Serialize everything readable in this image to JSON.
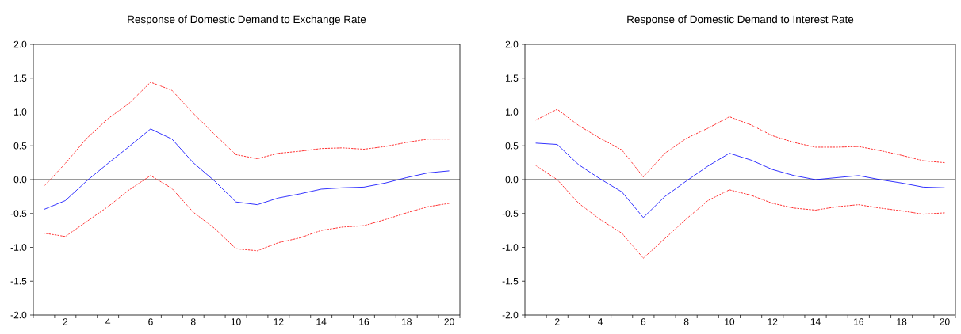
{
  "chart_data": [
    {
      "type": "line",
      "title": "Response of Domestic Demand to Exchange Rate",
      "x": [
        1,
        2,
        3,
        4,
        5,
        6,
        7,
        8,
        9,
        10,
        11,
        12,
        13,
        14,
        15,
        16,
        17,
        18,
        19,
        20
      ],
      "series": [
        {
          "color": "#0000ff",
          "line_style": "solid",
          "values": [
            -0.44,
            -0.31,
            -0.02,
            0.24,
            0.49,
            0.75,
            0.6,
            0.25,
            -0.02,
            -0.33,
            -0.37,
            -0.27,
            -0.21,
            -0.14,
            -0.12,
            -0.11,
            -0.05,
            0.03,
            0.1,
            0.13
          ]
        },
        {
          "color": "#ff0000",
          "line_style": "dashed",
          "values": [
            -0.1,
            0.24,
            0.61,
            0.9,
            1.13,
            1.44,
            1.32,
            0.98,
            0.67,
            0.37,
            0.31,
            0.39,
            0.42,
            0.46,
            0.47,
            0.45,
            0.49,
            0.55,
            0.6,
            0.6
          ]
        },
        {
          "color": "#ff0000",
          "line_style": "dashed",
          "values": [
            -0.79,
            -0.84,
            -0.62,
            -0.4,
            -0.15,
            0.06,
            -0.13,
            -0.48,
            -0.72,
            -1.02,
            -1.05,
            -0.93,
            -0.86,
            -0.75,
            -0.7,
            -0.68,
            -0.59,
            -0.49,
            -0.4,
            -0.35
          ]
        }
      ],
      "xlim": [
        0.5,
        20.5
      ],
      "xticks": [
        {
          "value": 0.5,
          "label": null
        },
        {
          "value": 1.5,
          "label": null
        },
        {
          "value": 2,
          "label": "2"
        },
        {
          "value": 2.5,
          "label": null
        },
        {
          "value": 3.5,
          "label": null
        },
        {
          "value": 4,
          "label": "4"
        },
        {
          "value": 4.5,
          "label": null
        },
        {
          "value": 5.5,
          "label": null
        },
        {
          "value": 6,
          "label": "6"
        },
        {
          "value": 6.5,
          "label": null
        },
        {
          "value": 7.5,
          "label": null
        },
        {
          "value": 8,
          "label": "8"
        },
        {
          "value": 8.5,
          "label": null
        },
        {
          "value": 9.5,
          "label": null
        },
        {
          "value": 10,
          "label": "10"
        },
        {
          "value": 10.5,
          "label": null
        },
        {
          "value": 11.5,
          "label": null
        },
        {
          "value": 12,
          "label": "12"
        },
        {
          "value": 12.5,
          "label": null
        },
        {
          "value": 13.5,
          "label": null
        },
        {
          "value": 14,
          "label": "14"
        },
        {
          "value": 14.5,
          "label": null
        },
        {
          "value": 15.5,
          "label": null
        },
        {
          "value": 16,
          "label": "16"
        },
        {
          "value": 16.5,
          "label": null
        },
        {
          "value": 17.5,
          "label": null
        },
        {
          "value": 18,
          "label": "18"
        },
        {
          "value": 18.5,
          "label": null
        },
        {
          "value": 19.5,
          "label": null
        },
        {
          "value": 20,
          "label": "20"
        },
        {
          "value": 20.5,
          "label": null
        }
      ],
      "ylim": [
        -2,
        2
      ],
      "yticks": [
        {
          "value": -2,
          "label": "-2.0"
        },
        {
          "value": -1.5,
          "label": "-1.5"
        },
        {
          "value": -1,
          "label": "-1.0"
        },
        {
          "value": -0.5,
          "label": "-0.5"
        },
        {
          "value": 0,
          "label": "0.0"
        },
        {
          "value": 0.5,
          "label": "0.5"
        },
        {
          "value": 1,
          "label": "1.0"
        },
        {
          "value": 1.5,
          "label": "1.5"
        },
        {
          "value": 2,
          "label": "2.0"
        }
      ],
      "ref_lines": [
        {
          "axis": "y",
          "value": 0,
          "color": "#000000"
        }
      ]
    },
    {
      "type": "line",
      "title": "Response of Domestic Demand to Interest Rate",
      "x": [
        1,
        2,
        3,
        4,
        5,
        6,
        7,
        8,
        9,
        10,
        11,
        12,
        13,
        14,
        15,
        16,
        17,
        18,
        19,
        20
      ],
      "series": [
        {
          "color": "#0000ff",
          "line_style": "solid",
          "values": [
            0.54,
            0.52,
            0.22,
            0.01,
            -0.18,
            -0.56,
            -0.25,
            -0.02,
            0.2,
            0.39,
            0.29,
            0.15,
            0.06,
            0.0,
            0.03,
            0.06,
            0.0,
            -0.05,
            -0.11,
            -0.12
          ]
        },
        {
          "color": "#ff0000",
          "line_style": "dashed",
          "values": [
            0.88,
            1.04,
            0.8,
            0.61,
            0.44,
            0.04,
            0.39,
            0.61,
            0.76,
            0.93,
            0.81,
            0.65,
            0.55,
            0.48,
            0.48,
            0.49,
            0.43,
            0.36,
            0.28,
            0.25
          ]
        },
        {
          "color": "#ff0000",
          "line_style": "dashed",
          "values": [
            0.21,
            0.0,
            -0.35,
            -0.59,
            -0.79,
            -1.16,
            -0.87,
            -0.58,
            -0.31,
            -0.15,
            -0.23,
            -0.35,
            -0.42,
            -0.45,
            -0.4,
            -0.37,
            -0.42,
            -0.46,
            -0.51,
            -0.49
          ]
        }
      ],
      "xlim": [
        0.5,
        20.5
      ],
      "xticks": [
        {
          "value": 0.5,
          "label": null
        },
        {
          "value": 1.5,
          "label": null
        },
        {
          "value": 2,
          "label": "2"
        },
        {
          "value": 2.5,
          "label": null
        },
        {
          "value": 3.5,
          "label": null
        },
        {
          "value": 4,
          "label": "4"
        },
        {
          "value": 4.5,
          "label": null
        },
        {
          "value": 5.5,
          "label": null
        },
        {
          "value": 6,
          "label": "6"
        },
        {
          "value": 6.5,
          "label": null
        },
        {
          "value": 7.5,
          "label": null
        },
        {
          "value": 8,
          "label": "8"
        },
        {
          "value": 8.5,
          "label": null
        },
        {
          "value": 9.5,
          "label": null
        },
        {
          "value": 10,
          "label": "10"
        },
        {
          "value": 10.5,
          "label": null
        },
        {
          "value": 11.5,
          "label": null
        },
        {
          "value": 12,
          "label": "12"
        },
        {
          "value": 12.5,
          "label": null
        },
        {
          "value": 13.5,
          "label": null
        },
        {
          "value": 14,
          "label": "14"
        },
        {
          "value": 14.5,
          "label": null
        },
        {
          "value": 15.5,
          "label": null
        },
        {
          "value": 16,
          "label": "16"
        },
        {
          "value": 16.5,
          "label": null
        },
        {
          "value": 17.5,
          "label": null
        },
        {
          "value": 18,
          "label": "18"
        },
        {
          "value": 18.5,
          "label": null
        },
        {
          "value": 19.5,
          "label": null
        },
        {
          "value": 20,
          "label": "20"
        },
        {
          "value": 20.5,
          "label": null
        }
      ],
      "ylim": [
        -2,
        2
      ],
      "yticks": [
        {
          "value": -2,
          "label": "-2.0"
        },
        {
          "value": -1.5,
          "label": "-1.5"
        },
        {
          "value": -1,
          "label": "-1.0"
        },
        {
          "value": -0.5,
          "label": "-0.5"
        },
        {
          "value": 0,
          "label": "0.0"
        },
        {
          "value": 0.5,
          "label": "0.5"
        },
        {
          "value": 1,
          "label": "1.0"
        },
        {
          "value": 1.5,
          "label": "1.5"
        },
        {
          "value": 2,
          "label": "2.0"
        }
      ],
      "ref_lines": [
        {
          "axis": "y",
          "value": 0,
          "color": "#000000"
        }
      ]
    }
  ]
}
